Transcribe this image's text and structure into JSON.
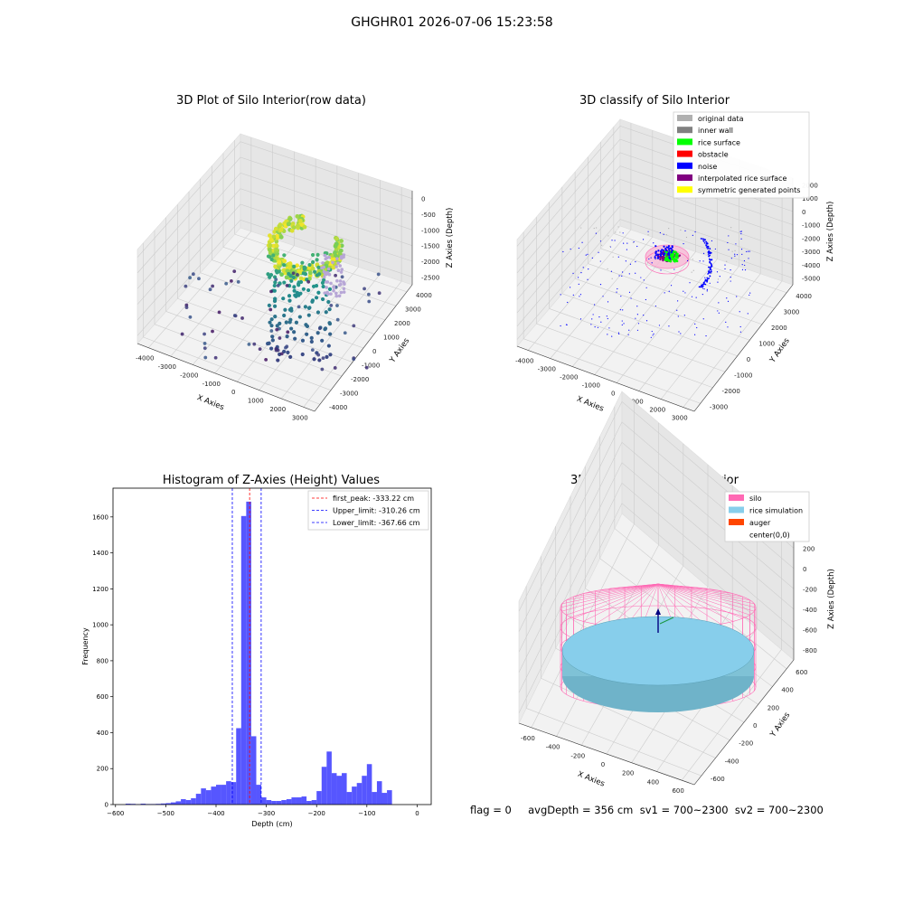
{
  "suptitle": "GHGHR01 2026-07-06 15:23:58",
  "footer": "flag = 0     avgDepth = 356 cm  sv1 = 700~2300  sv2 = 700~2300",
  "colors": {
    "original": "#b0b0b0",
    "inner_wall": "#808080",
    "rice_surface": "#00ff00",
    "obstacle": "#ff0000",
    "noise": "#0000ff",
    "interpolated": "#800080",
    "symmetric": "#ffff00",
    "hist_bar": "#4d4dff",
    "silo": "#ff69b4",
    "rice_sim": "#87ceeb",
    "auger": "#ff4500"
  },
  "chart_data": [
    {
      "type": "scatter",
      "title": "3D Plot of Silo Interior(row data)",
      "xlabel": "X Axies",
      "ylabel": "Y Axies",
      "zlabel": "Z Axies (Depth)",
      "x_ticks": [
        "-4000",
        "-3000",
        "-2000",
        "-1000",
        "0",
        "1000",
        "2000",
        "3000"
      ],
      "y_ticks": [
        "-4000",
        "-3000",
        "-2000",
        "-1000",
        "0",
        "1000",
        "2000",
        "3000",
        "4000"
      ],
      "z_ticks": [
        "0",
        "-500",
        "-1000",
        "-1500",
        "-2000",
        "-2500"
      ],
      "xlim": [
        -4200,
        3500
      ],
      "ylim": [
        -4200,
        4200
      ],
      "zlim": [
        -2800,
        100
      ],
      "grid": true
    },
    {
      "type": "scatter",
      "title": "3D classify of Silo Interior",
      "xlabel": "X Axies",
      "ylabel": "Y Axies",
      "zlabel": "Z Axies (Depth)",
      "x_ticks": [
        "-4000",
        "-3000",
        "-2000",
        "-1000",
        "0",
        "1000",
        "2000",
        "3000"
      ],
      "y_ticks": [
        "-3000",
        "-2000",
        "-1000",
        "0",
        "1000",
        "2000",
        "3000",
        "4000"
      ],
      "z_ticks": [
        "2000",
        "1000",
        "0",
        "-1000",
        "-2000",
        "-3000",
        "-4000",
        "-5000"
      ],
      "legend": [
        "original data",
        "inner wall",
        "rice surface",
        "obstacle",
        "noise",
        "interpolated rice surface",
        "symmetric generated points"
      ],
      "legend_position": "top-right",
      "grid": true
    },
    {
      "type": "bar",
      "title": "Histogram of Z-Axies (Height) Values",
      "xlabel": "Depth (cm)",
      "ylabel": "Frequency",
      "x_ticks": [
        "−600",
        "−500",
        "−400",
        "−300",
        "−200",
        "−100",
        "0"
      ],
      "y_ticks": [
        "0",
        "200",
        "400",
        "600",
        "800",
        "1000",
        "1200",
        "1400",
        "1600"
      ],
      "xlim": [
        -605,
        28
      ],
      "ylim": [
        0,
        1760
      ],
      "bins": [
        [
          -580,
          -570,
          5
        ],
        [
          -570,
          -560,
          4
        ],
        [
          -560,
          -550,
          2
        ],
        [
          -550,
          -540,
          5
        ],
        [
          -540,
          -530,
          3
        ],
        [
          -530,
          -520,
          3
        ],
        [
          -520,
          -510,
          4
        ],
        [
          -510,
          -500,
          6
        ],
        [
          -500,
          -490,
          8
        ],
        [
          -490,
          -480,
          12
        ],
        [
          -480,
          -470,
          18
        ],
        [
          -470,
          -460,
          30
        ],
        [
          -460,
          -450,
          25
        ],
        [
          -450,
          -440,
          35
        ],
        [
          -440,
          -430,
          60
        ],
        [
          -430,
          -420,
          90
        ],
        [
          -420,
          -410,
          80
        ],
        [
          -410,
          -400,
          100
        ],
        [
          -400,
          -390,
          110
        ],
        [
          -390,
          -380,
          110
        ],
        [
          -380,
          -370,
          130
        ],
        [
          -370,
          -360,
          125
        ],
        [
          -360,
          -350,
          425
        ],
        [
          -350,
          -340,
          1605
        ],
        [
          -340,
          -330,
          1685
        ],
        [
          -330,
          -320,
          380
        ],
        [
          -320,
          -310,
          110
        ],
        [
          -310,
          -300,
          40
        ],
        [
          -300,
          -290,
          25
        ],
        [
          -290,
          -280,
          20
        ],
        [
          -280,
          -270,
          20
        ],
        [
          -270,
          -260,
          25
        ],
        [
          -260,
          -250,
          30
        ],
        [
          -250,
          -240,
          40
        ],
        [
          -240,
          -230,
          40
        ],
        [
          -230,
          -220,
          45
        ],
        [
          -220,
          -210,
          20
        ],
        [
          -210,
          -200,
          25
        ],
        [
          -200,
          -190,
          75
        ],
        [
          -190,
          -180,
          210
        ],
        [
          -180,
          -170,
          295
        ],
        [
          -170,
          -160,
          175
        ],
        [
          -160,
          -150,
          160
        ],
        [
          -150,
          -140,
          175
        ],
        [
          -140,
          -130,
          70
        ],
        [
          -130,
          -120,
          100
        ],
        [
          -120,
          -110,
          120
        ],
        [
          -110,
          -100,
          160
        ],
        [
          -100,
          -90,
          225
        ],
        [
          -90,
          -80,
          70
        ],
        [
          -80,
          -70,
          130
        ],
        [
          -70,
          -60,
          65
        ],
        [
          -60,
          -50,
          80
        ]
      ],
      "vlines": [
        {
          "label": "first_peak: -333.22 cm",
          "x": -333.22,
          "color": "#ff0000"
        },
        {
          "label": "Upper_limit: -310.26 cm",
          "x": -310.26,
          "color": "#0000ff"
        },
        {
          "label": "Lower_limit: -367.66 cm",
          "x": -367.66,
          "color": "#0000ff"
        }
      ],
      "legend_position": "top-right"
    },
    {
      "type": "surface",
      "title": "3D simulation of Silo Interior",
      "xlabel": "X Axies",
      "ylabel": "Y Axies",
      "zlabel": "Z Axies (Depth)",
      "x_ticks": [
        "-600",
        "-400",
        "-200",
        "0",
        "200",
        "400",
        "600"
      ],
      "y_ticks": [
        "-600",
        "-400",
        "-200",
        "0",
        "200",
        "400",
        "600"
      ],
      "z_ticks": [
        "200",
        "0",
        "-200",
        "-400",
        "-600",
        "-800"
      ],
      "legend": [
        "silo",
        "rice simulation",
        "auger",
        "center(0,0)"
      ],
      "legend_position": "top-right",
      "grid": true
    }
  ]
}
